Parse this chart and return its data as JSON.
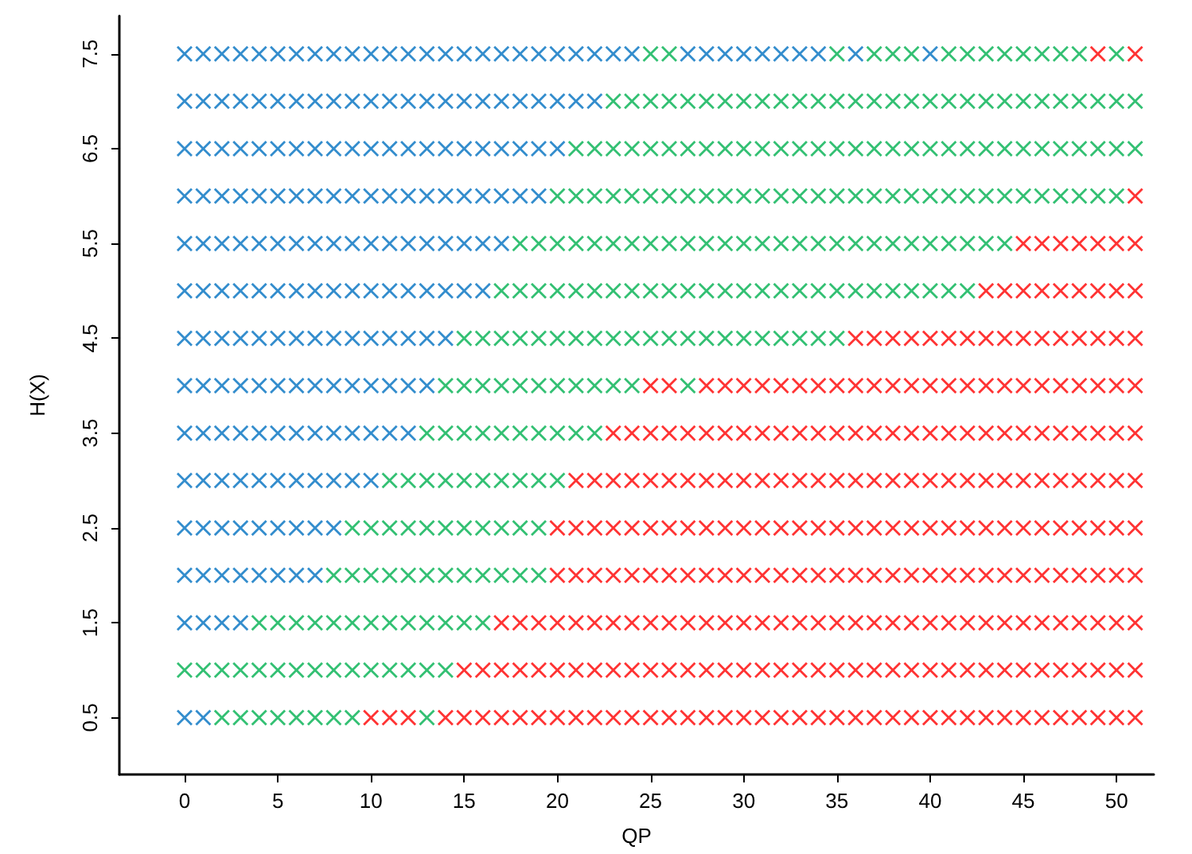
{
  "chart_data": {
    "type": "scatter",
    "xlabel": "QP",
    "ylabel": "H(X)",
    "xlim": [
      -3.5,
      52
    ],
    "ylim": [
      -0.1,
      7.9
    ],
    "xticks": [
      0,
      5,
      10,
      15,
      20,
      25,
      30,
      35,
      40,
      45,
      50
    ],
    "yticks": [
      0.5,
      1.5,
      2.5,
      3.5,
      4.5,
      5.5,
      6.5,
      7.5
    ],
    "marker": "cross",
    "series": [
      {
        "color": "#0070c0",
        "x": [
          0,
          0,
          0,
          0,
          0,
          0,
          0,
          0,
          0,
          0,
          0,
          0,
          0,
          0,
          1,
          1,
          1,
          1,
          1,
          1,
          1,
          1,
          1,
          1,
          1,
          1,
          1,
          1,
          2,
          2,
          2,
          2,
          2,
          2,
          2,
          2,
          2,
          2,
          2,
          2,
          2,
          3,
          3,
          3,
          3,
          3,
          3,
          3,
          3,
          3,
          3,
          3,
          3,
          3,
          4,
          4,
          4,
          4,
          4,
          4,
          4,
          4,
          4,
          4,
          4,
          4,
          5,
          5,
          5,
          5,
          5,
          5,
          5,
          5,
          5,
          5,
          5,
          5,
          6,
          6,
          6,
          6,
          6,
          6,
          6,
          6,
          6,
          6,
          6,
          6,
          7,
          7,
          7,
          7,
          7,
          7,
          7,
          7,
          7,
          7,
          7,
          7,
          8,
          8,
          8,
          8,
          8,
          8,
          8,
          8,
          8,
          8,
          8,
          9,
          9,
          9,
          9,
          9,
          9,
          9,
          9,
          9,
          9,
          10,
          10,
          10,
          10,
          10,
          10,
          10,
          10,
          10,
          10,
          11,
          11,
          11,
          11,
          11,
          11,
          11,
          11,
          11,
          12,
          12,
          12,
          12,
          12,
          12,
          12,
          12,
          12,
          13,
          13,
          13,
          13,
          13,
          13,
          13,
          13,
          14,
          14,
          14,
          14,
          14,
          14,
          14,
          15,
          15,
          15,
          15,
          15,
          15,
          16,
          16,
          16,
          16,
          16,
          16,
          17,
          17,
          17,
          17,
          17,
          18,
          18,
          18,
          18,
          19,
          19,
          19,
          19,
          20,
          20,
          20,
          21,
          21,
          22,
          22,
          23,
          24,
          27,
          28,
          29,
          30,
          31,
          32,
          33,
          34,
          36,
          40
        ],
        "values": [
          0.5,
          1.5,
          2,
          2.5,
          3,
          3.5,
          4,
          4.5,
          5,
          5.5,
          6,
          6.5,
          7,
          7.5,
          0.5,
          1.5,
          2,
          2.5,
          3,
          3.5,
          4,
          4.5,
          5,
          5.5,
          6,
          6.5,
          7,
          7.5,
          1.5,
          2,
          2.5,
          3,
          3.5,
          4,
          4.5,
          5,
          5.5,
          6,
          6.5,
          7,
          7.5,
          1.5,
          2,
          2.5,
          3,
          3.5,
          4,
          4.5,
          5,
          5.5,
          6,
          6.5,
          7,
          7.5,
          2,
          2.5,
          3,
          3.5,
          4,
          4.5,
          5,
          5.5,
          6,
          6.5,
          7,
          7.5,
          2,
          2.5,
          3,
          3.5,
          4,
          4.5,
          5,
          5.5,
          6,
          6.5,
          7,
          7.5,
          2,
          2.5,
          3,
          3.5,
          4,
          4.5,
          5,
          5.5,
          6,
          6.5,
          7,
          7.5,
          2,
          2.5,
          3,
          3.5,
          4,
          4.5,
          5,
          5.5,
          6,
          6.5,
          7,
          7.5,
          2.5,
          3,
          3.5,
          4,
          4.5,
          5,
          5.5,
          6,
          6.5,
          7,
          7.5,
          3,
          3.5,
          4,
          4.5,
          5,
          5.5,
          6,
          6.5,
          7,
          7.5,
          3,
          3.5,
          4,
          4.5,
          5,
          5.5,
          6,
          6.5,
          7,
          7.5,
          3.5,
          4,
          4.5,
          5,
          5.5,
          6,
          6.5,
          7,
          7.5,
          3.5,
          4,
          4.5,
          5,
          5.5,
          6,
          6.5,
          7,
          7.5,
          4,
          4.5,
          5,
          5.5,
          6,
          6.5,
          7,
          7.5,
          4.5,
          5,
          5.5,
          6,
          6.5,
          7,
          7.5,
          5,
          5.5,
          6,
          6.5,
          7,
          7.5,
          5,
          5.5,
          6,
          6.5,
          7,
          7.5,
          5.5,
          6,
          6.5,
          7,
          7.5,
          6,
          6.5,
          7,
          7.5,
          6,
          6.5,
          7,
          7.5,
          6.5,
          7,
          7.5,
          7,
          7.5,
          7,
          7.5,
          7.5,
          7.5,
          7.5,
          7.5,
          7.5,
          7.5,
          7.5,
          7.5,
          7.5,
          7.5,
          7.5,
          7.5
        ]
      },
      {
        "color": "#00b050",
        "x": [
          0,
          1,
          2,
          2,
          3,
          3,
          4,
          4,
          4,
          5,
          5,
          5,
          6,
          6,
          6,
          7,
          7,
          7,
          8,
          8,
          8,
          8,
          9,
          9,
          9,
          9,
          9,
          10,
          10,
          10,
          10,
          11,
          11,
          11,
          11,
          11,
          12,
          12,
          12,
          12,
          12,
          13,
          13,
          13,
          13,
          13,
          13,
          13,
          14,
          14,
          14,
          14,
          14,
          14,
          14,
          15,
          15,
          15,
          15,
          15,
          15,
          15,
          16,
          16,
          16,
          16,
          16,
          16,
          16,
          17,
          17,
          17,
          17,
          17,
          17,
          17,
          18,
          18,
          18,
          18,
          18,
          18,
          18,
          18,
          19,
          19,
          19,
          19,
          19,
          19,
          19,
          19,
          20,
          20,
          20,
          20,
          20,
          20,
          20,
          21,
          21,
          21,
          21,
          21,
          21,
          21,
          22,
          22,
          22,
          22,
          22,
          22,
          22,
          23,
          23,
          23,
          23,
          23,
          23,
          23,
          24,
          24,
          24,
          24,
          24,
          24,
          24,
          25,
          25,
          25,
          25,
          25,
          25,
          25,
          26,
          26,
          26,
          26,
          26,
          26,
          26,
          27,
          27,
          27,
          27,
          27,
          27,
          27,
          28,
          28,
          28,
          28,
          28,
          28,
          29,
          29,
          29,
          29,
          29,
          29,
          30,
          30,
          30,
          30,
          30,
          30,
          31,
          31,
          31,
          31,
          31,
          31,
          32,
          32,
          32,
          32,
          32,
          32,
          33,
          33,
          33,
          33,
          33,
          33,
          34,
          34,
          34,
          34,
          34,
          34,
          35,
          35,
          35,
          35,
          35,
          35,
          35,
          36,
          36,
          36,
          36,
          36,
          37,
          37,
          37,
          37,
          37,
          37,
          38,
          38,
          38,
          38,
          38,
          38,
          39,
          39,
          39,
          39,
          39,
          39,
          40,
          40,
          40,
          40,
          40,
          41,
          41,
          41,
          41,
          41,
          41,
          42,
          42,
          42,
          42,
          42,
          42,
          43,
          43,
          43,
          43,
          43,
          44,
          44,
          44,
          44,
          44,
          45,
          45,
          45,
          45,
          46,
          46,
          46,
          46,
          47,
          47,
          47,
          47,
          48,
          48,
          48,
          48,
          49,
          49,
          49,
          50,
          50,
          50,
          50,
          51,
          51
        ],
        "values": [
          1,
          1,
          0.5,
          1,
          0.5,
          1,
          0.5,
          1,
          1.5,
          0.5,
          1,
          1.5,
          0.5,
          1,
          1.5,
          0.5,
          1,
          1.5,
          0.5,
          1,
          1.5,
          2,
          0.5,
          1,
          1.5,
          2,
          2.5,
          1,
          1.5,
          2,
          2.5,
          1,
          1.5,
          2,
          2.5,
          3,
          1,
          1.5,
          2,
          2.5,
          3,
          0.5,
          1,
          1.5,
          2,
          2.5,
          3,
          3.5,
          1,
          1.5,
          2,
          2.5,
          3,
          3.5,
          4,
          1.5,
          2,
          2.5,
          3,
          3.5,
          4,
          4.5,
          1.5,
          2,
          2.5,
          3,
          3.5,
          4,
          4.5,
          2,
          2.5,
          3,
          3.5,
          4,
          4.5,
          5,
          2,
          2.5,
          3,
          3.5,
          4,
          4.5,
          5,
          5.5,
          2,
          2.5,
          3,
          3.5,
          4,
          4.5,
          5,
          5.5,
          3,
          3.5,
          4,
          4.5,
          5,
          5.5,
          6,
          3.5,
          4,
          4.5,
          5,
          5.5,
          6,
          6.5,
          3.5,
          4,
          4.5,
          5,
          5.5,
          6,
          6.5,
          4,
          4.5,
          5,
          5.5,
          6,
          6.5,
          7,
          4,
          4.5,
          5,
          5.5,
          6,
          6.5,
          7,
          4.5,
          5,
          5.5,
          6,
          6.5,
          7,
          7.5,
          4.5,
          5,
          5.5,
          6,
          6.5,
          7,
          7.5,
          4,
          4.5,
          5,
          5.5,
          6,
          6.5,
          7,
          4.5,
          5,
          5.5,
          6,
          6.5,
          7,
          4.5,
          5,
          5.5,
          6,
          6.5,
          7,
          4.5,
          5,
          5.5,
          6,
          6.5,
          7,
          4.5,
          5,
          5.5,
          6,
          6.5,
          7,
          4.5,
          5,
          5.5,
          6,
          6.5,
          7,
          4.5,
          5,
          5.5,
          6,
          6.5,
          7,
          4.5,
          5,
          5.5,
          6,
          6.5,
          7,
          4.5,
          5,
          5.5,
          6,
          6.5,
          7,
          7.5,
          5,
          5.5,
          6,
          6.5,
          7,
          5,
          5.5,
          6,
          6.5,
          7,
          7.5,
          5,
          5.5,
          6,
          6.5,
          7,
          7.5,
          5,
          5.5,
          6,
          6.5,
          7,
          7.5,
          5,
          5.5,
          6,
          6.5,
          7,
          5,
          5.5,
          6,
          6.5,
          7,
          7.5,
          5,
          5.5,
          6,
          6.5,
          7,
          7.5,
          5.5,
          6,
          6.5,
          7,
          7.5,
          5.5,
          6,
          6.5,
          7,
          7.5,
          6,
          6.5,
          7,
          7.5,
          6,
          6.5,
          7,
          7.5,
          6,
          6.5,
          7,
          7.5,
          6,
          6.5,
          7,
          7.5,
          6,
          6.5,
          7,
          6,
          6.5,
          7,
          7.5,
          6.5,
          7
        ]
      },
      {
        "color": "#ff0000",
        "x": [
          10,
          11,
          12,
          14,
          15,
          15,
          16,
          16,
          17,
          17,
          17,
          18,
          18,
          18,
          19,
          19,
          19,
          20,
          20,
          20,
          20,
          20,
          21,
          21,
          21,
          21,
          21,
          21,
          22,
          22,
          22,
          22,
          22,
          22,
          23,
          23,
          23,
          23,
          23,
          23,
          23,
          24,
          24,
          24,
          24,
          24,
          24,
          24,
          25,
          25,
          25,
          25,
          25,
          25,
          25,
          25,
          26,
          26,
          26,
          26,
          26,
          26,
          26,
          26,
          27,
          27,
          27,
          27,
          27,
          27,
          27,
          28,
          28,
          28,
          28,
          28,
          28,
          28,
          28,
          29,
          29,
          29,
          29,
          29,
          29,
          29,
          29,
          30,
          30,
          30,
          30,
          30,
          30,
          30,
          30,
          31,
          31,
          31,
          31,
          31,
          31,
          31,
          31,
          32,
          32,
          32,
          32,
          32,
          32,
          32,
          32,
          33,
          33,
          33,
          33,
          33,
          33,
          33,
          33,
          34,
          34,
          34,
          34,
          34,
          34,
          34,
          34,
          35,
          35,
          35,
          35,
          35,
          35,
          35,
          35,
          36,
          36,
          36,
          36,
          36,
          36,
          36,
          36,
          36,
          37,
          37,
          37,
          37,
          37,
          37,
          37,
          37,
          37,
          38,
          38,
          38,
          38,
          38,
          38,
          38,
          38,
          38,
          39,
          39,
          39,
          39,
          39,
          39,
          39,
          39,
          39,
          40,
          40,
          40,
          40,
          40,
          40,
          40,
          40,
          40,
          41,
          41,
          41,
          41,
          41,
          41,
          41,
          41,
          41,
          42,
          42,
          42,
          42,
          42,
          42,
          42,
          42,
          42,
          43,
          43,
          43,
          43,
          43,
          43,
          43,
          43,
          43,
          43,
          44,
          44,
          44,
          44,
          44,
          44,
          44,
          44,
          44,
          44,
          45,
          45,
          45,
          45,
          45,
          45,
          45,
          45,
          45,
          45,
          45,
          46,
          46,
          46,
          46,
          46,
          46,
          46,
          46,
          46,
          46,
          46,
          47,
          47,
          47,
          47,
          47,
          47,
          47,
          47,
          47,
          47,
          47,
          48,
          48,
          48,
          48,
          48,
          48,
          48,
          48,
          48,
          48,
          48,
          49,
          49,
          49,
          49,
          49,
          49,
          49,
          49,
          49,
          49,
          49,
          49,
          50,
          50,
          50,
          50,
          50,
          50,
          50,
          50,
          50,
          50,
          50,
          51,
          51,
          51,
          51,
          51,
          51,
          51,
          51,
          51,
          51,
          51,
          51,
          51
        ],
        "values": [
          0.5,
          0.5,
          0.5,
          0.5,
          0.5,
          1,
          0.5,
          1,
          0.5,
          1,
          1.5,
          0.5,
          1,
          1.5,
          0.5,
          1,
          1.5,
          0.5,
          1,
          1.5,
          2,
          2.5,
          0.5,
          1,
          1.5,
          2,
          2.5,
          3,
          0.5,
          1,
          1.5,
          2,
          2.5,
          3,
          0.5,
          1,
          1.5,
          2,
          2.5,
          3,
          3.5,
          0.5,
          1,
          1.5,
          2,
          2.5,
          3,
          3.5,
          0.5,
          1,
          1.5,
          2,
          2.5,
          3,
          3.5,
          4,
          0.5,
          1,
          1.5,
          2,
          2.5,
          3,
          3.5,
          4,
          0.5,
          1,
          1.5,
          2,
          2.5,
          3,
          3.5,
          0.5,
          1,
          1.5,
          2,
          2.5,
          3,
          3.5,
          4,
          0.5,
          1,
          1.5,
          2,
          2.5,
          3,
          3.5,
          4,
          0.5,
          1,
          1.5,
          2,
          2.5,
          3,
          3.5,
          4,
          0.5,
          1,
          1.5,
          2,
          2.5,
          3,
          3.5,
          4,
          0.5,
          1,
          1.5,
          2,
          2.5,
          3,
          3.5,
          4,
          0.5,
          1,
          1.5,
          2,
          2.5,
          3,
          3.5,
          4,
          0.5,
          1,
          1.5,
          2,
          2.5,
          3,
          3.5,
          4,
          0.5,
          1,
          1.5,
          2,
          2.5,
          3,
          3.5,
          4,
          0.5,
          1,
          1.5,
          2,
          2.5,
          3,
          3.5,
          4,
          4.5,
          0.5,
          1,
          1.5,
          2,
          2.5,
          3,
          3.5,
          4,
          4.5,
          0.5,
          1,
          1.5,
          2,
          2.5,
          3,
          3.5,
          4,
          4.5,
          0.5,
          1,
          1.5,
          2,
          2.5,
          3,
          3.5,
          4,
          4.5,
          0.5,
          1,
          1.5,
          2,
          2.5,
          3,
          3.5,
          4,
          4.5,
          0.5,
          1,
          1.5,
          2,
          2.5,
          3,
          3.5,
          4,
          4.5,
          0.5,
          1,
          1.5,
          2,
          2.5,
          3,
          3.5,
          4,
          4.5,
          0.5,
          1,
          1.5,
          2,
          2.5,
          3,
          3.5,
          4,
          4.5,
          5,
          0.5,
          1,
          1.5,
          2,
          2.5,
          3,
          3.5,
          4,
          4.5,
          5,
          0.5,
          1,
          1.5,
          2,
          2.5,
          3,
          3.5,
          4,
          4.5,
          5,
          5.5,
          0.5,
          1,
          1.5,
          2,
          2.5,
          3,
          3.5,
          4,
          4.5,
          5,
          5.5,
          0.5,
          1,
          1.5,
          2,
          2.5,
          3,
          3.5,
          4,
          4.5,
          5,
          5.5,
          0.5,
          1,
          1.5,
          2,
          2.5,
          3,
          3.5,
          4,
          4.5,
          5,
          5.5,
          0.5,
          1,
          1.5,
          2,
          2.5,
          3,
          3.5,
          4,
          4.5,
          5,
          5.5,
          7.5,
          0.5,
          1,
          1.5,
          2,
          2.5,
          3,
          3.5,
          4,
          4.5,
          5,
          5.5,
          0.5,
          1,
          1.5,
          2,
          2.5,
          3,
          3.5,
          4,
          4.5,
          5,
          5.5,
          6,
          7.5
        ]
      }
    ]
  }
}
